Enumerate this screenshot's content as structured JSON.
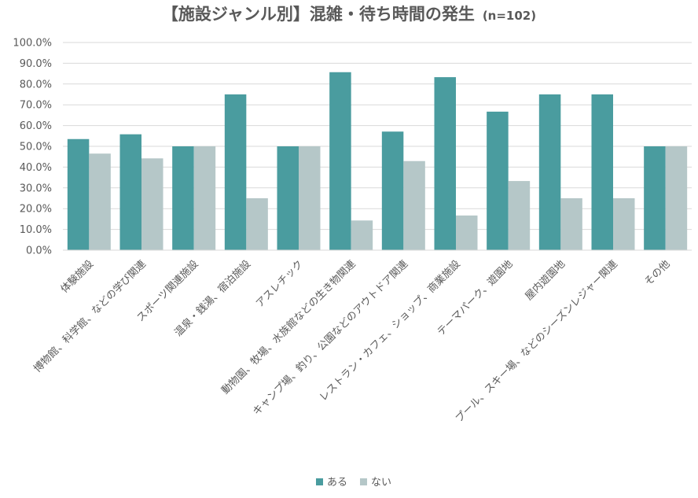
{
  "chart_data": {
    "type": "bar",
    "title": "【施設ジャンル別】混雑・待ち時間の発生",
    "subtitle": "(n=102)",
    "categories": [
      "体験施設",
      "博物館、科学館、などの学び関連",
      "スポーツ関連施設",
      "温泉・銭湯、宿泊施設",
      "アスレチック",
      "動物園、牧場、水族館などの生き物関連",
      "キャンプ場、釣り、公園などのアウトドア関連",
      "レストラン・カフェ、ショップ、商業施設",
      "テーマパーク、遊園地",
      "屋内遊園地",
      "プール、スキー場、などのシーズンレジャー関連",
      "その他"
    ],
    "series": [
      {
        "name": "ある",
        "color": "#4a9c9f",
        "values": [
          53.5,
          55.8,
          50.0,
          75.0,
          50.0,
          85.7,
          57.1,
          83.3,
          66.7,
          75.0,
          75.0,
          50.0
        ]
      },
      {
        "name": "ない",
        "color": "#b5c7c8",
        "values": [
          46.5,
          44.2,
          50.0,
          25.0,
          50.0,
          14.3,
          42.9,
          16.7,
          33.3,
          25.0,
          25.0,
          50.0
        ]
      }
    ],
    "ylim": [
      0,
      100
    ],
    "yticks": [
      "0.0%",
      "10.0%",
      "20.0%",
      "30.0%",
      "40.0%",
      "50.0%",
      "60.0%",
      "70.0%",
      "80.0%",
      "90.0%",
      "100.0%"
    ],
    "grid": true,
    "legend_position": "bottom"
  }
}
